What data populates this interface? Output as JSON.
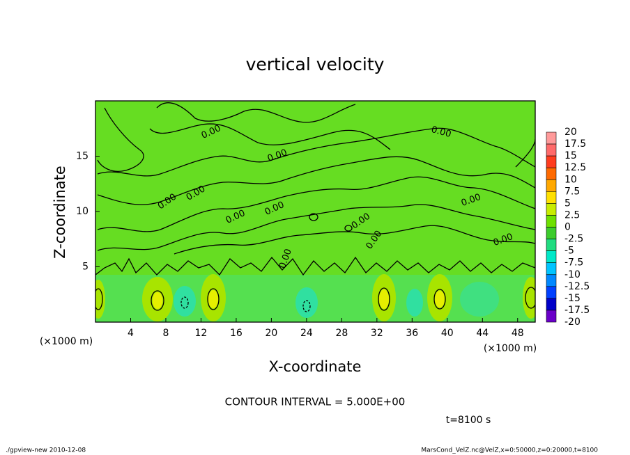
{
  "chart_data": {
    "type": "contour",
    "title": "vertical velocity",
    "x_label": "X-coordinate",
    "y_label": "Z-coordinate",
    "x_unit": "(×1000 m)",
    "y_unit": "(×1000 m)",
    "xlim": [
      0,
      50
    ],
    "ylim": [
      0,
      20
    ],
    "xticks": [
      4,
      8,
      12,
      16,
      20,
      24,
      28,
      32,
      36,
      40,
      44,
      48
    ],
    "yticks": [
      5,
      10,
      15
    ],
    "colorbar": {
      "levels": [
        20,
        17.5,
        15,
        12.5,
        10,
        7.5,
        5,
        2.5,
        0,
        -2.5,
        -5,
        -7.5,
        -10,
        -12.5,
        -15,
        -17.5,
        -20
      ],
      "colors": [
        "#ff9a9a",
        "#ff6a6a",
        "#ff3c1e",
        "#ff6a00",
        "#ffa800",
        "#ffe000",
        "#c8ec00",
        "#6ee000",
        "#3ccc2c",
        "#20dc80",
        "#00e8c8",
        "#00c4ff",
        "#0088ff",
        "#0040ff",
        "#0000c8",
        "#6a00c8"
      ]
    },
    "contour_labels": [
      "0.00",
      "0.00",
      "0.00",
      "0.00",
      "0.00",
      "0.00",
      "0.00",
      "0.00",
      "0.00",
      "0.00",
      "0.00",
      "0.00"
    ],
    "contour_interval": "CONTOUR INTERVAL = 5.000E+00",
    "time_label": "t=8100 s",
    "footer_left": "./gpview-new   2010-12-08",
    "footer_right": "MarsCond_VelZ.nc@VelZ,x=0:50000,z=0:20000,t=8100"
  }
}
